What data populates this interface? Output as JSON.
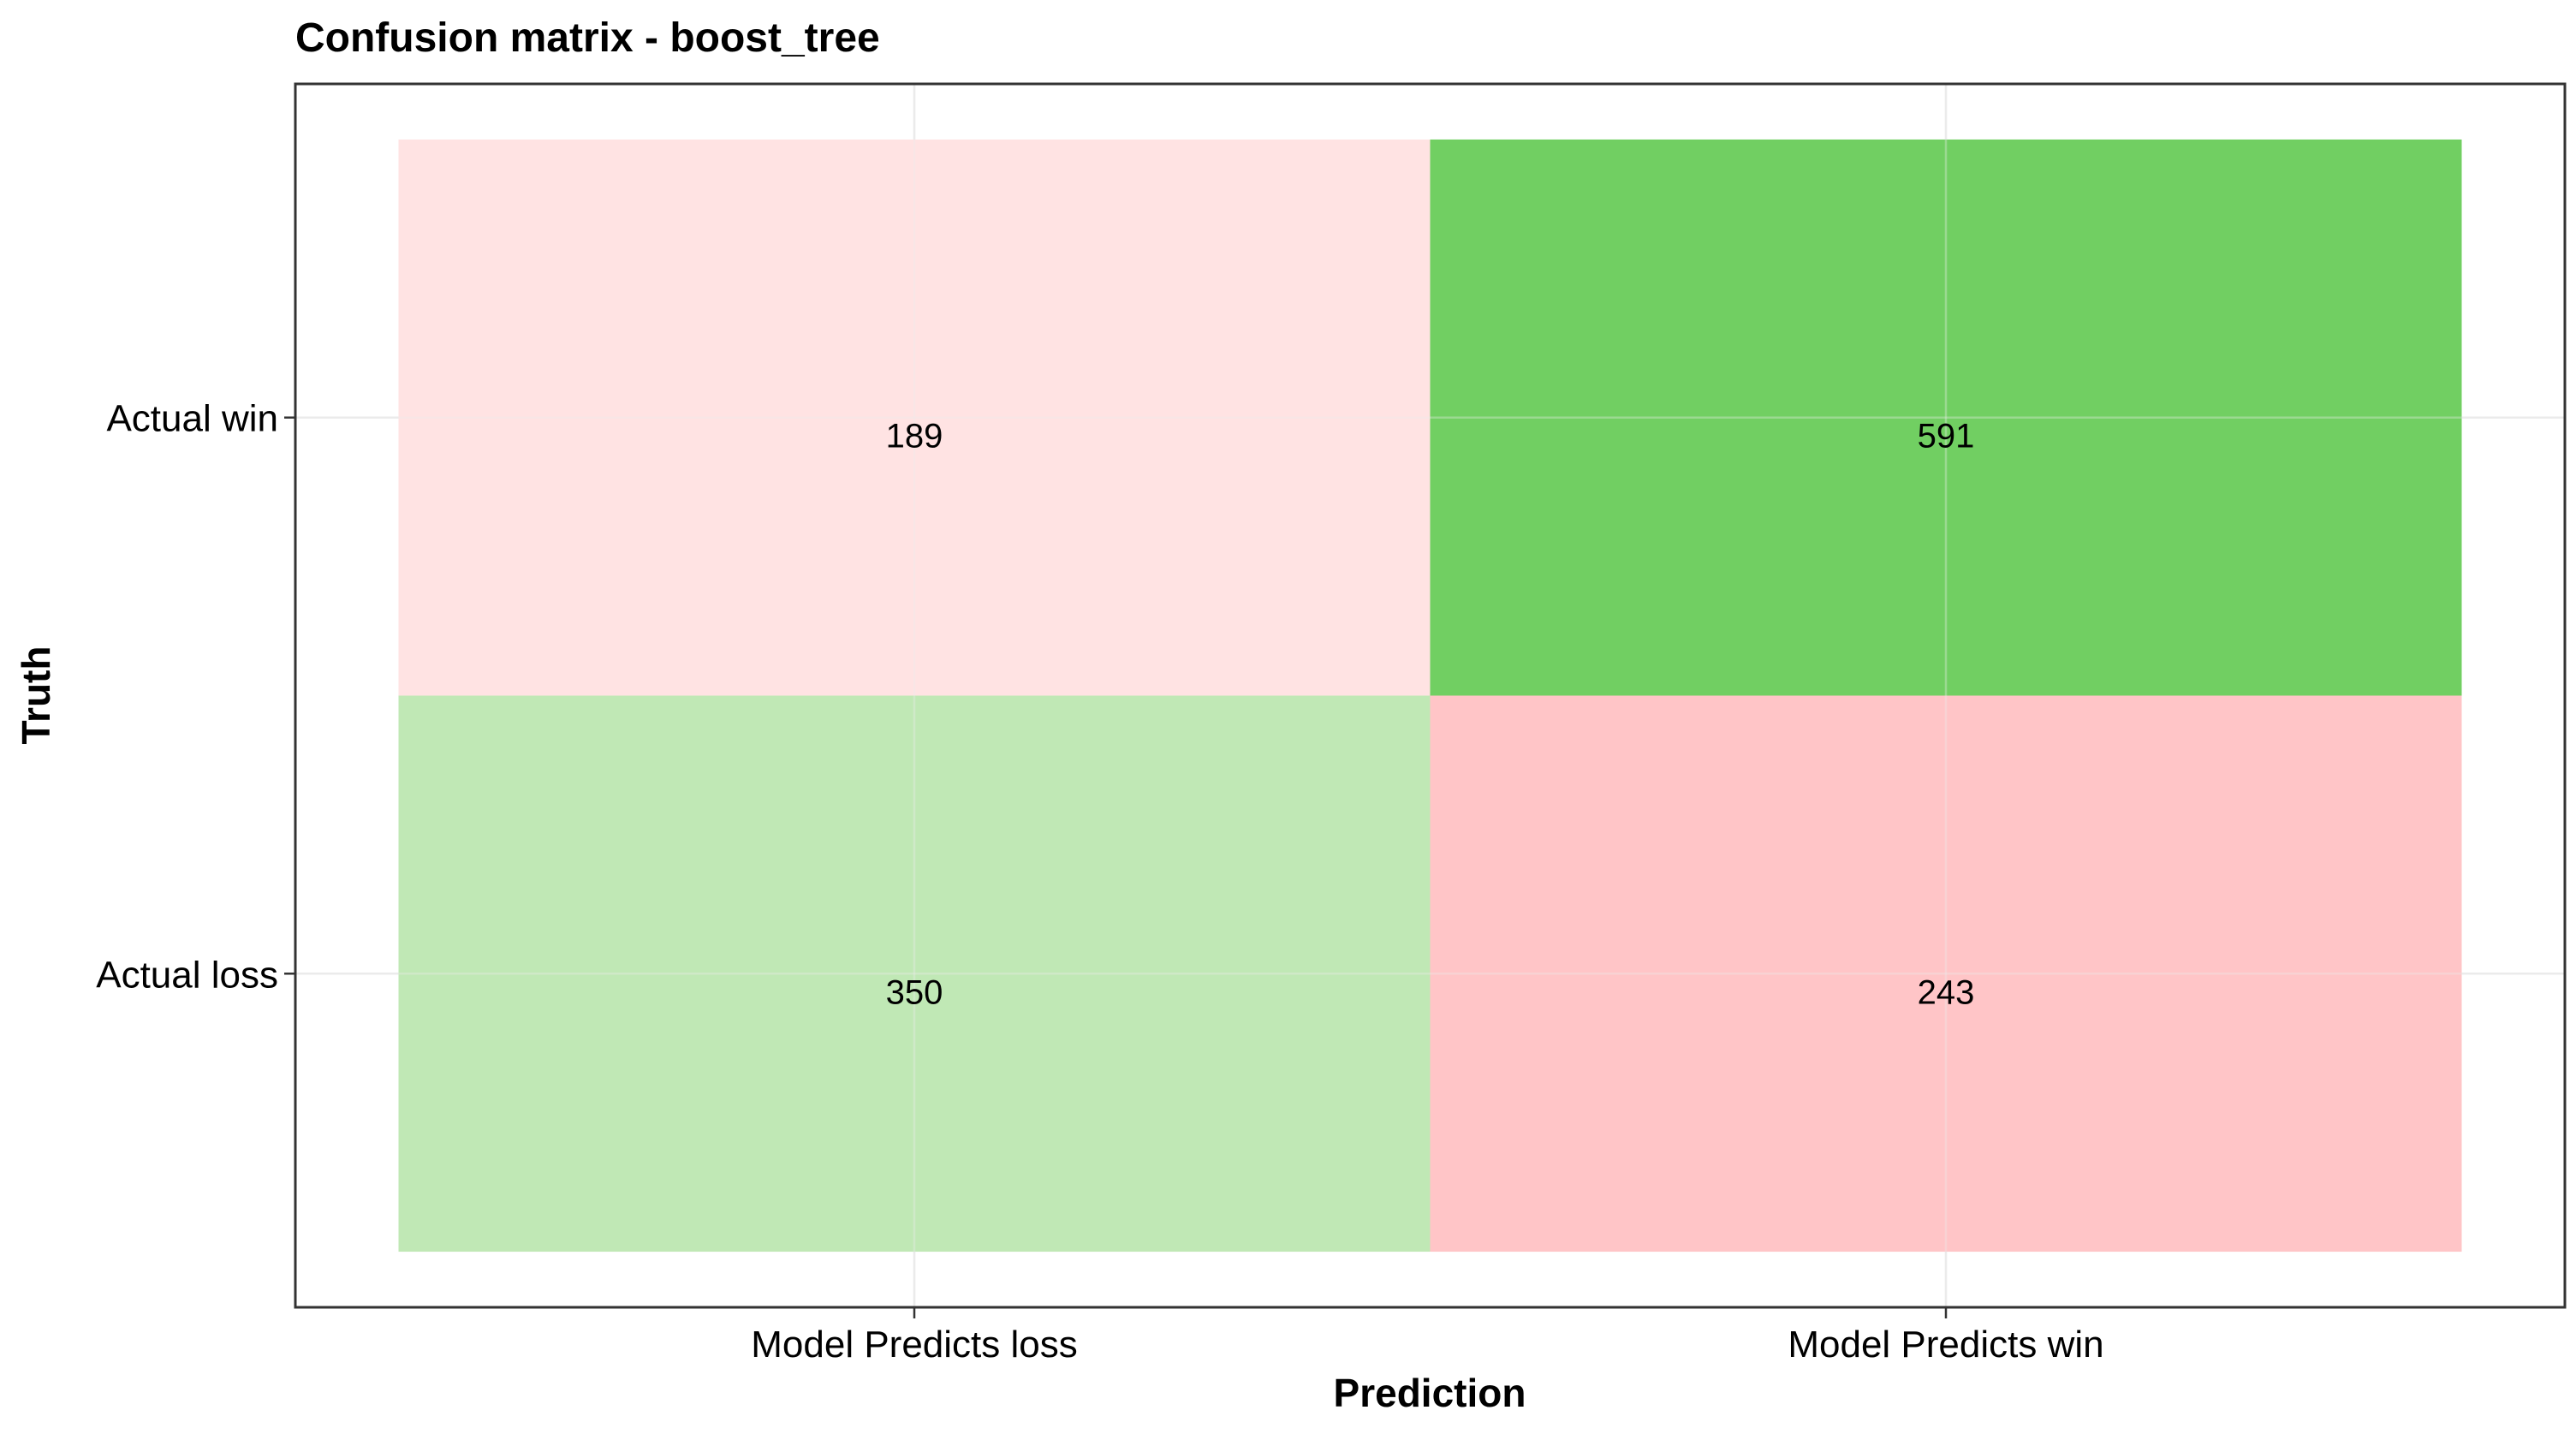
{
  "chart_data": {
    "type": "heatmap",
    "title": "Confusion matrix - boost_tree",
    "xlabel": "Prediction",
    "ylabel": "Truth",
    "x_categories": [
      "Model Predicts loss",
      "Model Predicts win"
    ],
    "y_categories": [
      "Actual loss",
      "Actual win"
    ],
    "cells": [
      {
        "prediction": "Model Predicts loss",
        "truth": "Actual win",
        "value": 189,
        "correct": false
      },
      {
        "prediction": "Model Predicts win",
        "truth": "Actual win",
        "value": 591,
        "correct": true
      },
      {
        "prediction": "Model Predicts loss",
        "truth": "Actual loss",
        "value": 350,
        "correct": true
      },
      {
        "prediction": "Model Predicts win",
        "truth": "Actual loss",
        "value": 243,
        "correct": false
      }
    ],
    "grid": true,
    "legend": "none",
    "colors": {
      "correct_scale": [
        "#c0e8b5",
        "#71cf62"
      ],
      "incorrect_scale": [
        "#ffe3e3",
        "#ffc5c7"
      ],
      "panel_border": "#333333",
      "grid": "#ebebeb"
    }
  }
}
